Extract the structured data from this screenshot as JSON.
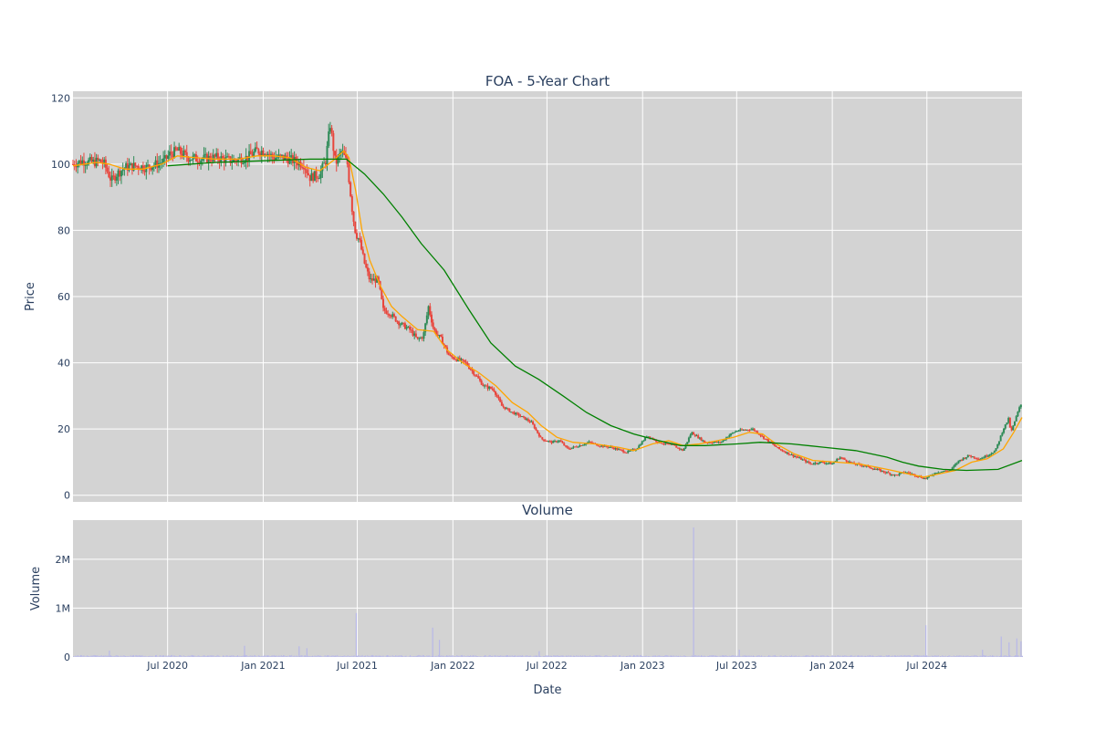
{
  "chart_data": {
    "type": "candlestick",
    "title": "FOA - 5-Year Chart",
    "price_panel": {
      "ylabel": "Price",
      "ylim": [
        -2,
        122
      ],
      "yticks": [
        0,
        20,
        40,
        60,
        80,
        100,
        120
      ],
      "grid": true,
      "colors": {
        "up": "#2e8b57",
        "down": "#e8453c",
        "ma_short": "#ffa500",
        "ma_long": "#008000"
      },
      "price_path": [
        [
          "2020-01-01",
          100
        ],
        [
          "2020-01-20",
          101
        ],
        [
          "2020-02-10",
          100.5
        ],
        [
          "2020-02-20",
          101
        ],
        [
          "2020-03-01",
          100
        ],
        [
          "2020-03-15",
          95
        ],
        [
          "2020-03-25",
          97
        ],
        [
          "2020-04-10",
          99
        ],
        [
          "2020-05-01",
          99.5
        ],
        [
          "2020-05-20",
          99
        ],
        [
          "2020-06-10",
          100
        ],
        [
          "2020-06-25",
          101
        ],
        [
          "2020-07-05",
          103
        ],
        [
          "2020-07-20",
          104
        ],
        [
          "2020-08-10",
          102
        ],
        [
          "2020-09-01",
          101.5
        ],
        [
          "2020-10-01",
          102
        ],
        [
          "2020-11-01",
          101
        ],
        [
          "2020-12-01",
          102
        ],
        [
          "2020-12-20",
          104
        ],
        [
          "2021-01-05",
          104
        ],
        [
          "2021-01-20",
          102
        ],
        [
          "2021-02-10",
          102
        ],
        [
          "2021-03-01",
          101
        ],
        [
          "2021-03-20",
          100
        ],
        [
          "2021-04-01",
          96
        ],
        [
          "2021-04-20",
          97
        ],
        [
          "2021-05-01",
          101
        ],
        [
          "2021-05-10",
          112
        ],
        [
          "2021-05-20",
          100
        ],
        [
          "2021-06-01",
          104
        ],
        [
          "2021-06-12",
          100
        ],
        [
          "2021-06-22",
          85
        ],
        [
          "2021-06-28",
          79
        ],
        [
          "2021-07-05",
          77
        ],
        [
          "2021-07-15",
          70
        ],
        [
          "2021-07-25",
          65
        ],
        [
          "2021-08-10",
          65
        ],
        [
          "2021-08-20",
          56
        ],
        [
          "2021-09-01",
          55
        ],
        [
          "2021-09-20",
          52
        ],
        [
          "2021-10-10",
          50
        ],
        [
          "2021-10-25",
          47
        ],
        [
          "2021-11-05",
          48
        ],
        [
          "2021-11-15",
          57
        ],
        [
          "2021-11-25",
          50
        ],
        [
          "2021-12-10",
          47
        ],
        [
          "2021-12-25",
          42
        ],
        [
          "2022-01-10",
          41
        ],
        [
          "2022-01-25",
          40
        ],
        [
          "2022-02-15",
          36
        ],
        [
          "2022-03-01",
          33
        ],
        [
          "2022-03-20",
          32
        ],
        [
          "2022-04-05",
          27
        ],
        [
          "2022-04-25",
          25
        ],
        [
          "2022-05-10",
          24
        ],
        [
          "2022-06-01",
          22
        ],
        [
          "2022-06-20",
          17
        ],
        [
          "2022-07-10",
          16
        ],
        [
          "2022-07-25",
          16.5
        ],
        [
          "2022-08-10",
          14
        ],
        [
          "2022-09-01",
          15
        ],
        [
          "2022-09-20",
          16
        ],
        [
          "2022-10-10",
          15
        ],
        [
          "2022-11-01",
          14.5
        ],
        [
          "2022-12-01",
          13
        ],
        [
          "2022-12-20",
          14
        ],
        [
          "2023-01-10",
          18
        ],
        [
          "2023-02-01",
          16
        ],
        [
          "2023-03-01",
          15
        ],
        [
          "2023-03-20",
          13.5
        ],
        [
          "2023-04-05",
          19
        ],
        [
          "2023-05-01",
          16
        ],
        [
          "2023-06-01",
          16
        ],
        [
          "2023-06-15",
          18
        ],
        [
          "2023-07-01",
          19.5
        ],
        [
          "2023-08-01",
          20
        ],
        [
          "2023-08-25",
          17
        ],
        [
          "2023-09-20",
          14
        ],
        [
          "2023-10-10",
          12.5
        ],
        [
          "2023-11-01",
          11
        ],
        [
          "2023-11-20",
          9.5
        ],
        [
          "2023-12-10",
          10
        ],
        [
          "2024-01-01",
          9.5
        ],
        [
          "2024-01-15",
          11.5
        ],
        [
          "2024-02-10",
          9.5
        ],
        [
          "2024-03-01",
          9
        ],
        [
          "2024-04-01",
          7.5
        ],
        [
          "2024-05-01",
          6
        ],
        [
          "2024-05-20",
          7
        ],
        [
          "2024-06-10",
          6
        ],
        [
          "2024-06-28",
          5
        ],
        [
          "2024-07-20",
          7
        ],
        [
          "2024-08-15",
          7.5
        ],
        [
          "2024-09-01",
          10.5
        ],
        [
          "2024-09-20",
          12
        ],
        [
          "2024-10-10",
          11
        ],
        [
          "2024-10-25",
          12
        ],
        [
          "2024-11-10",
          13.5
        ],
        [
          "2024-11-25",
          20
        ],
        [
          "2024-12-05",
          23
        ],
        [
          "2024-12-10",
          19
        ],
        [
          "2024-12-25",
          26
        ],
        [
          "2024-12-31",
          28
        ]
      ],
      "ma_short_path": [
        [
          "2020-01-01",
          99.5
        ],
        [
          "2020-02-15",
          100.5
        ],
        [
          "2020-03-10",
          100
        ],
        [
          "2020-04-10",
          98.5
        ],
        [
          "2020-05-15",
          98.5
        ],
        [
          "2020-06-20",
          100
        ],
        [
          "2020-07-20",
          102.5
        ],
        [
          "2020-08-20",
          102
        ],
        [
          "2020-10-01",
          101.5
        ],
        [
          "2020-11-15",
          101.5
        ],
        [
          "2020-12-20",
          102.5
        ],
        [
          "2021-01-20",
          102.5
        ],
        [
          "2021-02-20",
          102
        ],
        [
          "2021-03-25",
          99
        ],
        [
          "2021-04-20",
          98
        ],
        [
          "2021-05-15",
          101
        ],
        [
          "2021-06-05",
          104
        ],
        [
          "2021-06-15",
          102
        ],
        [
          "2021-06-28",
          92
        ],
        [
          "2021-07-10",
          80
        ],
        [
          "2021-07-25",
          71
        ],
        [
          "2021-08-15",
          63
        ],
        [
          "2021-09-05",
          57
        ],
        [
          "2021-09-25",
          54
        ],
        [
          "2021-10-25",
          50
        ],
        [
          "2021-11-25",
          49.5
        ],
        [
          "2021-12-20",
          44
        ],
        [
          "2022-01-20",
          40
        ],
        [
          "2022-02-20",
          37
        ],
        [
          "2022-03-25",
          33
        ],
        [
          "2022-04-25",
          28
        ],
        [
          "2022-05-25",
          25
        ],
        [
          "2022-06-20",
          21
        ],
        [
          "2022-07-20",
          17.5
        ],
        [
          "2022-08-20",
          16
        ],
        [
          "2022-10-01",
          15.5
        ],
        [
          "2022-11-15",
          14.5
        ],
        [
          "2022-12-15",
          13.5
        ],
        [
          "2023-01-20",
          15.5
        ],
        [
          "2023-02-20",
          16.5
        ],
        [
          "2023-03-20",
          15
        ],
        [
          "2023-04-20",
          15.5
        ],
        [
          "2023-05-25",
          16.5
        ],
        [
          "2023-06-25",
          17.5
        ],
        [
          "2023-07-25",
          19
        ],
        [
          "2023-08-20",
          18.5
        ],
        [
          "2023-09-15",
          15.5
        ],
        [
          "2023-10-20",
          12.5
        ],
        [
          "2023-11-25",
          10.5
        ],
        [
          "2024-01-10",
          10
        ],
        [
          "2024-02-20",
          9.5
        ],
        [
          "2024-03-25",
          8.5
        ],
        [
          "2024-04-25",
          7.5
        ],
        [
          "2024-05-25",
          6.5
        ],
        [
          "2024-06-25",
          5.5
        ],
        [
          "2024-07-25",
          6.5
        ],
        [
          "2024-08-25",
          7.5
        ],
        [
          "2024-09-25",
          10
        ],
        [
          "2024-10-25",
          11
        ],
        [
          "2024-11-25",
          14
        ],
        [
          "2024-12-15",
          19
        ],
        [
          "2024-12-31",
          23.5
        ]
      ],
      "ma_long_path": [
        [
          "2020-07-01",
          99.5
        ],
        [
          "2020-10-01",
          100.5
        ],
        [
          "2021-01-01",
          101
        ],
        [
          "2021-04-01",
          101.5
        ],
        [
          "2021-05-15",
          101.5
        ],
        [
          "2021-06-10",
          101.5
        ],
        [
          "2021-07-15",
          97
        ],
        [
          "2021-08-20",
          91
        ],
        [
          "2021-09-25",
          84
        ],
        [
          "2021-11-01",
          76
        ],
        [
          "2021-12-15",
          68
        ],
        [
          "2022-02-01",
          56
        ],
        [
          "2022-03-15",
          46
        ],
        [
          "2022-05-01",
          39
        ],
        [
          "2022-06-15",
          35
        ],
        [
          "2022-08-01",
          30
        ],
        [
          "2022-09-15",
          25
        ],
        [
          "2022-11-01",
          21
        ],
        [
          "2022-12-15",
          18.5
        ],
        [
          "2023-02-01",
          16.5
        ],
        [
          "2023-03-15",
          15
        ],
        [
          "2023-05-01",
          15
        ],
        [
          "2023-07-01",
          15.5
        ],
        [
          "2023-08-15",
          16
        ],
        [
          "2023-10-15",
          15.5
        ],
        [
          "2023-12-15",
          14.5
        ],
        [
          "2024-02-15",
          13.5
        ],
        [
          "2024-04-15",
          11.5
        ],
        [
          "2024-05-15",
          10
        ],
        [
          "2024-06-15",
          8.8
        ],
        [
          "2024-08-01",
          7.8
        ],
        [
          "2024-09-15",
          7.5
        ],
        [
          "2024-11-15",
          7.8
        ],
        [
          "2024-12-31",
          10.5
        ]
      ]
    },
    "volume_panel": {
      "subtitle": "Volume",
      "ylabel": "Volume",
      "xlabel": "Date",
      "ylim": [
        0,
        2800000
      ],
      "yticks": [
        0,
        1000000,
        2000000
      ],
      "ytick_labels": [
        "0",
        "1M",
        "2M"
      ],
      "bar_color": "#b8b8e8",
      "baseline": 20000,
      "spikes": [
        [
          "2020-03-10",
          130000
        ],
        [
          "2020-11-25",
          230000
        ],
        [
          "2021-03-10",
          220000
        ],
        [
          "2021-03-25",
          180000
        ],
        [
          "2021-06-28",
          900000
        ],
        [
          "2021-11-22",
          600000
        ],
        [
          "2021-12-05",
          350000
        ],
        [
          "2022-06-15",
          120000
        ],
        [
          "2023-04-08",
          2650000
        ],
        [
          "2023-07-05",
          150000
        ],
        [
          "2024-06-28",
          650000
        ],
        [
          "2024-10-15",
          150000
        ],
        [
          "2024-11-20",
          420000
        ],
        [
          "2024-12-05",
          300000
        ],
        [
          "2024-12-20",
          380000
        ],
        [
          "2024-12-28",
          320000
        ]
      ]
    },
    "x_axis": {
      "range": [
        "2020-01-01",
        "2024-12-31"
      ],
      "ticks": [
        [
          "2020-07-01",
          "Jul 2020"
        ],
        [
          "2021-01-01",
          "Jan 2021"
        ],
        [
          "2021-07-01",
          "Jul 2021"
        ],
        [
          "2022-01-01",
          "Jan 2022"
        ],
        [
          "2022-07-01",
          "Jul 2022"
        ],
        [
          "2023-01-01",
          "Jan 2023"
        ],
        [
          "2023-07-01",
          "Jul 2023"
        ],
        [
          "2024-01-01",
          "Jan 2024"
        ],
        [
          "2024-07-01",
          "Jul 2024"
        ]
      ]
    }
  }
}
